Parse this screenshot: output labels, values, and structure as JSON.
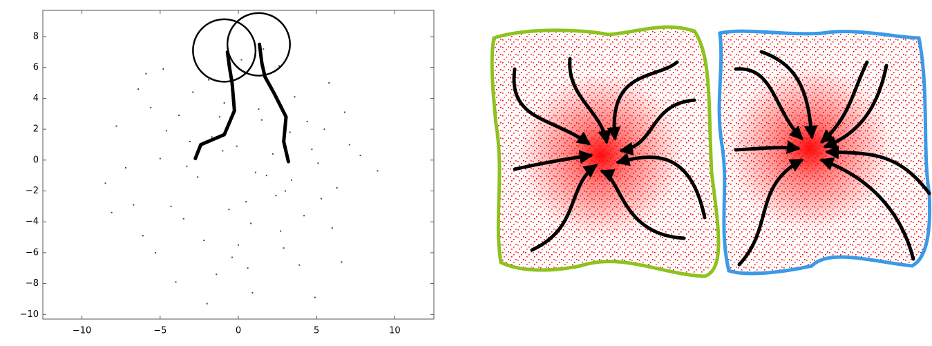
{
  "chart_data": {
    "type": "scatter",
    "xlim": [
      -12.5,
      12.5
    ],
    "ylim": [
      -10.3,
      9.7
    ],
    "xticks": [
      {
        "value": -10,
        "label": "−10"
      },
      {
        "value": -5,
        "label": "−5"
      },
      0,
      5,
      10
    ],
    "yticks": [
      {
        "value": -10,
        "label": "−10"
      },
      {
        "value": -8,
        "label": "−8"
      },
      {
        "value": -6,
        "label": "−6"
      },
      {
        "value": -4,
        "label": "−4"
      },
      {
        "value": -2,
        "label": "−2"
      },
      0,
      2,
      4,
      6,
      8
    ],
    "points": {
      "color": "#444",
      "x": [
        -3.1,
        2.4,
        -5.6,
        0.8,
        4.7,
        -1.9,
        6.3,
        -7.2,
        1.5,
        -0.4,
        3.6,
        -4.3,
        5.5,
        -2.6,
        0.2,
        7.8,
        -6.1,
        2.9,
        -3.8,
        1.1,
        4.2,
        -0.9,
        -5.0,
        3.3,
        -1.4,
        6.8,
        -8.5,
        0.5,
        2.1,
        -2.2,
        5.1,
        -4.8,
        1.8,
        -6.7,
        3.9,
        -0.1,
        8.9,
        -3.5,
        4.4,
        -1.7,
        0.9,
        -7.8,
        2.6,
        6.0,
        -2.9,
        -5.3,
        1.3,
        3.0,
        -0.6,
        7.1,
        -4.0,
        2.2,
        -1.2,
        5.8,
        -6.4,
        0.0,
        4.9,
        -3.3,
        1.6,
        -8.1,
        3.4,
        -2.0,
        6.6,
        -0.3,
        2.7,
        -4.6,
        5.3,
        -1.0,
        0.6,
        -5.9
      ],
      "y": [
        1.2,
        -2.3,
        3.4,
        -4.1,
        0.7,
        5.2,
        -1.8,
        -0.5,
        2.6,
        -6.3,
        4.1,
        -3.0,
        2.0,
        -1.1,
        6.5,
        0.3,
        -4.9,
        -5.7,
        2.9,
        -0.8,
        -3.6,
        3.7,
        0.1,
        1.8,
        -7.4,
        3.1,
        -1.5,
        -2.7,
        4.8,
        -5.2,
        -0.2,
        5.9,
        -1.0,
        -2.9,
        -6.8,
        0.9,
        -0.7,
        -3.8,
        2.5,
        1.5,
        -8.6,
        2.2,
        6.1,
        -4.4,
        4.4,
        -6.0,
        3.3,
        -2.0,
        -3.2,
        1.0,
        -7.9,
        0.4,
        2.8,
        5.0,
        4.6,
        -5.5,
        -8.9,
        -0.4,
        7.2,
        -3.4,
        -1.3,
        -9.3,
        -6.6,
        3.9,
        -4.6,
        1.9,
        -2.5,
        0.6,
        -7.0,
        5.6
      ]
    },
    "paths": [
      {
        "color": "#000",
        "x": [
          -2.75,
          -2.4,
          -0.9,
          -0.25,
          -0.4,
          -0.55,
          -0.7
        ],
        "y": [
          0.1,
          1.0,
          1.65,
          3.2,
          5.0,
          5.9,
          7.0
        ]
      },
      {
        "color": "#000",
        "x": [
          3.2,
          2.9,
          3.05,
          2.3,
          1.7,
          1.5,
          1.35
        ],
        "y": [
          -0.1,
          1.2,
          2.8,
          4.3,
          5.4,
          6.3,
          7.5
        ]
      }
    ],
    "circles": {
      "color": "#000",
      "x": [
        -0.9,
        1.3
      ],
      "y": [
        7.1,
        7.5
      ],
      "r": [
        2.0,
        2.0
      ]
    }
  }
}
